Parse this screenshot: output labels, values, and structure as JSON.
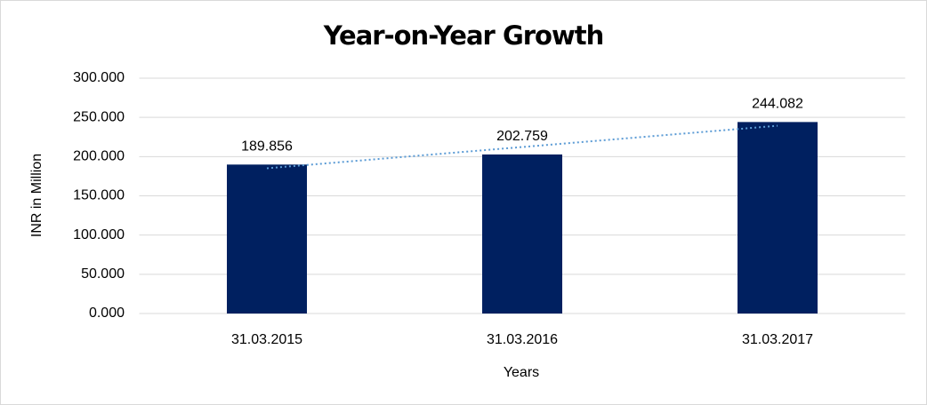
{
  "chart_data": {
    "type": "bar",
    "title": "Year-on-Year Growth",
    "x_label": "Years",
    "y_label": "INR in Million",
    "categories": [
      "31.03.2015",
      "31.03.2016",
      "31.03.2017"
    ],
    "values": [
      189.856,
      202.759,
      244.082
    ],
    "color": "#002060",
    "ylim": [
      0,
      300
    ],
    "yticks": [
      {
        "value": 0,
        "label": "0.000"
      },
      {
        "value": 50,
        "label": "50.000"
      },
      {
        "value": 100,
        "label": "100.000"
      },
      {
        "value": 150,
        "label": "150.000"
      },
      {
        "value": 200,
        "label": "200.000"
      },
      {
        "value": 250,
        "label": "250.000"
      },
      {
        "value": 300,
        "label": "300.000"
      }
    ],
    "grid": true,
    "trendline": true,
    "trendline_color": "#5b9bd5"
  }
}
